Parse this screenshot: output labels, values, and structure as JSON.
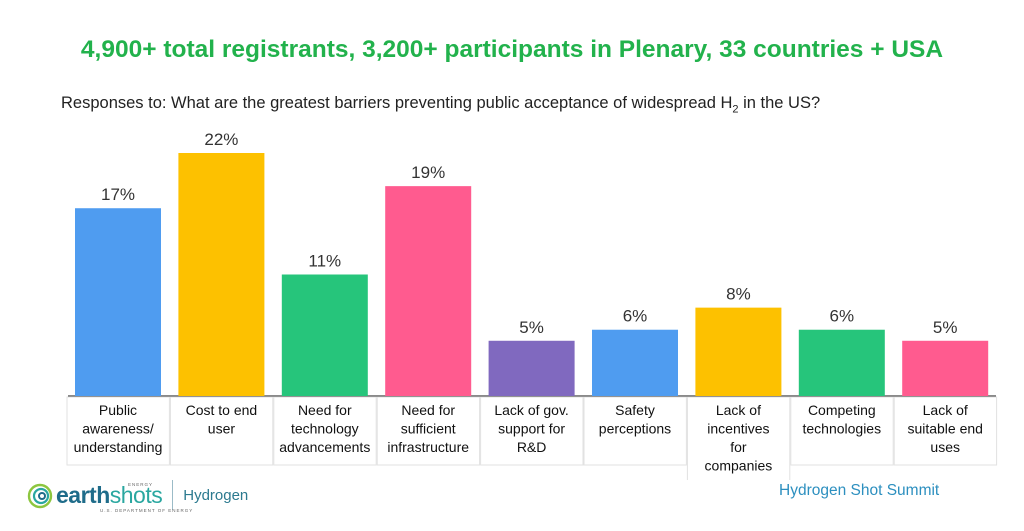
{
  "header": {
    "headline": "4,900+ total registrants, 3,200+ participants in Plenary, 33 countries + USA",
    "question_prefix": "Responses to:  What are the greatest barriers preventing public acceptance of widespread H",
    "question_sub": "2",
    "question_suffix": " in the US?"
  },
  "chart_data": {
    "type": "bar",
    "categories": [
      [
        "Public",
        "awareness/",
        "understanding"
      ],
      [
        "Cost to end",
        "user"
      ],
      [
        "Need for",
        "technology",
        "advancements"
      ],
      [
        "Need for",
        "sufficient",
        "infrastructure"
      ],
      [
        "Lack of gov.",
        "support for",
        "R&D"
      ],
      [
        "Safety",
        "perceptions"
      ],
      [
        "Lack of",
        "incentives",
        "for",
        "companies"
      ],
      [
        "Competing",
        "technologies"
      ],
      [
        "Lack of",
        "suitable end",
        "uses"
      ]
    ],
    "values": [
      17,
      22,
      11,
      19,
      5,
      6,
      8,
      6,
      5
    ],
    "value_labels": [
      "17%",
      "22%",
      "11%",
      "19%",
      "5%",
      "6%",
      "8%",
      "6%",
      "5%"
    ],
    "colors": [
      "#4f9cf0",
      "#fdc100",
      "#26c57b",
      "#ff5b8f",
      "#8069bf",
      "#4f9cf0",
      "#fdc100",
      "#26c57b",
      "#ff5b8f"
    ],
    "ylim": [
      0,
      22
    ],
    "grid": false,
    "legend": "none"
  },
  "footer": {
    "brand_main": "earth",
    "brand_light": "shots",
    "brand_top": "ENERGY",
    "brand_sub": "U.S. DEPARTMENT OF ENERGY",
    "program": "Hydrogen",
    "summit": "Hydrogen Shot Summit"
  }
}
